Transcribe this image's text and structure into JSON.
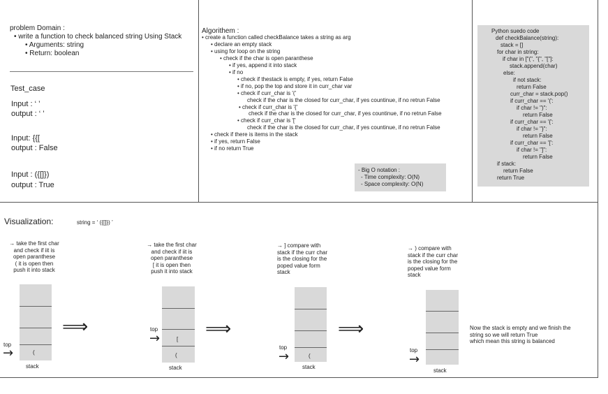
{
  "problem": {
    "title": "problem Domain :",
    "bullet1": "write a function to check balanced string  Using Stack",
    "sub1": "Arguments: string",
    "sub2": "Return: boolean"
  },
  "testcase": {
    "title": "Test_case",
    "in1": "Input : ‘  ’",
    "out1": "output : ‘  ’",
    "in2": "Input: {{[",
    "out2": "output : False",
    "in3": "Input : ({[]})",
    "out3": "output : True"
  },
  "algo": {
    "title": "Algorithem :",
    "lines": [
      "• create a function called checkBalance takes a string as arg",
      "• declare an empty stack",
      "• using for loop on the string",
      "• check if the char is open paranthese",
      "• if yes, append it into stack",
      "• if no",
      "• check if thestack is empty, if yes, return False",
      "• if no, pop the top and store it in curr_char var",
      "• check if curr_char is '('",
      "check if the char is the closed for curr_char, if yes countinue, if no retrun False",
      "• check if curr_char is '{'",
      "check if the char is the closed for curr_char, if yes countinue, if no retrun False",
      "• check if curr_char is '['",
      "check if the char is the closed for curr_char, if yes countinue, if no retrun False",
      "• check if there is items in the  stack",
      "• if yes, return False",
      "• if no return True"
    ],
    "bigo": [
      "- Big O notation :",
      "- Time complexity: O(N)",
      "- Space complexity: O(N)"
    ]
  },
  "pseudo": {
    "lines": [
      "Python suedo  code",
      "def checkBalance(string):",
      "stack = []",
      "for char in string:",
      "if char in [\"(\", \"{\", \"[\"]:",
      "stack.append(char)",
      "else:",
      "if not stack:",
      "return False",
      "curr_char = stack.pop()",
      "if curr_char == '(':",
      "if char != \")\":",
      "return False",
      "if curr_char == '{':",
      "if char != \"}\":",
      "return False",
      "if curr_char == '[':",
      "if char != \"]\":",
      "return False",
      "if stack:",
      "return False",
      "return True"
    ]
  },
  "viz": {
    "title": "Visualization:",
    "string_label": "string = ‘ ({[]}) ’",
    "step1": [
      "→ take the first char",
      "and check if iit is",
      "open paranthese",
      "(  it is open then",
      "push it into stack"
    ],
    "step2": [
      "→ take the first char",
      "and check if iit is",
      "open paranthese",
      "[  it is open then",
      "push it into stack"
    ],
    "step3": [
      "→ ]  compare with",
      "stack if the curr char",
      "is the closing for the",
      "poped value form",
      "stack"
    ],
    "step4": [
      "→ )  compare with",
      "stack if the curr char",
      "is the closing for the",
      "poped value form",
      "stack"
    ],
    "stack_label": "stack",
    "top_label": "top",
    "item_paren": "(",
    "item_bracket": "[",
    "final": [
      "Now the stack is empty and we finish the",
      "string so we will return True",
      "which mean this string is balanced"
    ]
  }
}
